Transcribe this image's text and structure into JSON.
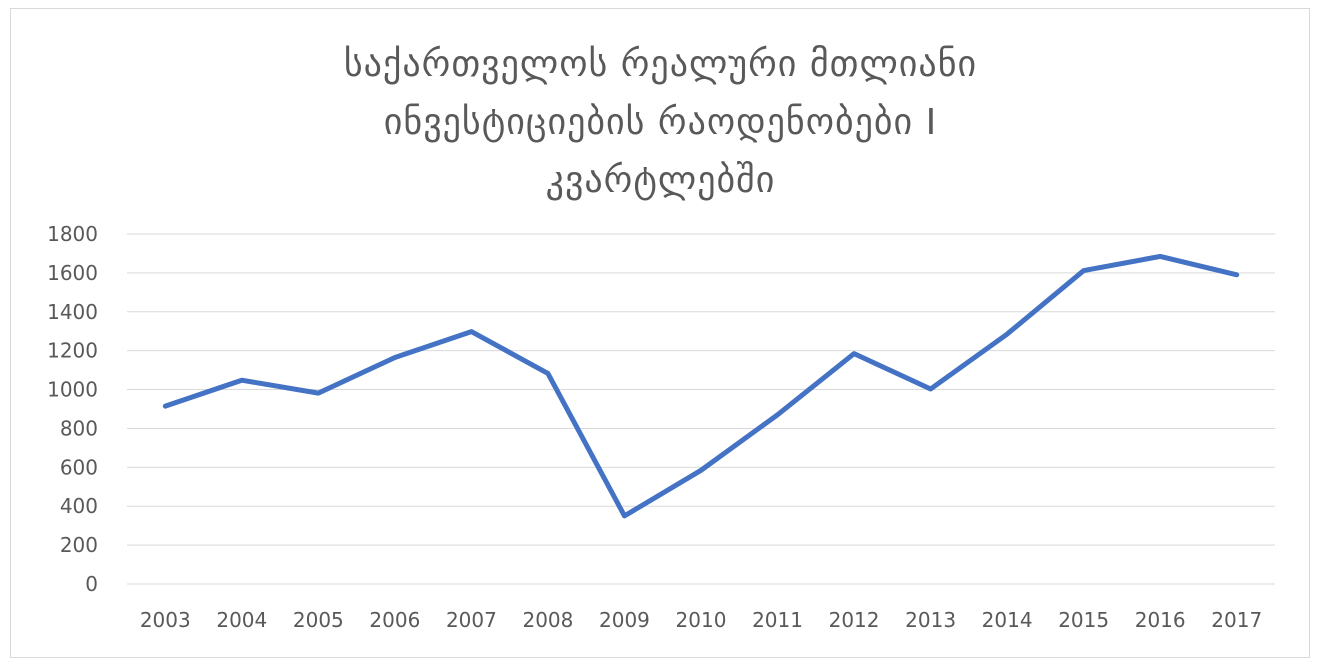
{
  "chart_data": {
    "type": "line",
    "title_lines": [
      "საქართველოს რეალური მთლიანი",
      "ინვესტიციების რაოდენობები I",
      "კვარტლებში"
    ],
    "categories": [
      "2003",
      "2004",
      "2005",
      "2006",
      "2007",
      "2008",
      "2009",
      "2010",
      "2011",
      "2012",
      "2013",
      "2014",
      "2015",
      "2016",
      "2017"
    ],
    "series": [
      {
        "values": [
          915,
          1048,
          982,
          1165,
          1298,
          1083,
          350,
          585,
          870,
          1185,
          1003,
          1285,
          1612,
          1685,
          1590
        ]
      }
    ],
    "ylim": [
      0,
      1800
    ],
    "yticks": [
      0,
      200,
      400,
      600,
      800,
      1000,
      1200,
      1400,
      1600,
      1800
    ],
    "grid": true,
    "legend": "none",
    "line_color": "#4472C4",
    "grid_color": "#d9d9d9",
    "text_color": "#595959"
  }
}
